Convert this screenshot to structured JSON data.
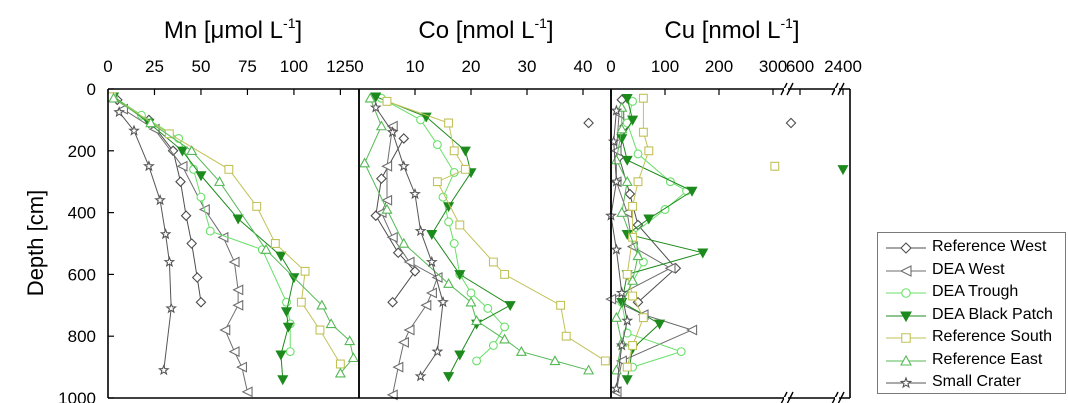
{
  "chart_data": {
    "type": "scatter",
    "ylabel": "Depth [cm]",
    "ylim": [
      1000,
      0
    ],
    "yticks": [
      "0",
      "200",
      "400",
      "600",
      "800",
      "1000"
    ],
    "legend_position": "right",
    "series": [
      {
        "name": "Reference West",
        "color": "#4d4d4d",
        "marker": "diamond"
      },
      {
        "name": "DEA West",
        "color": "#6e6e6e",
        "marker": "triangle-left"
      },
      {
        "name": "DEA Trough",
        "color": "#69e069",
        "marker": "circle"
      },
      {
        "name": "DEA Black Patch",
        "color": "#1c8a1c",
        "marker": "triangle-down-filled"
      },
      {
        "name": "Reference South",
        "color": "#c2c25a",
        "marker": "square"
      },
      {
        "name": "Reference East",
        "color": "#56b856",
        "marker": "triangle-up"
      },
      {
        "name": "Small Crater",
        "color": "#555555",
        "marker": "star"
      }
    ],
    "panels": [
      {
        "title": "Mn [μmol L",
        "title_sup": "-1",
        "title_end": "]",
        "xlim": [
          0,
          135
        ],
        "xticks": [
          "0",
          "25",
          "50",
          "75",
          "100",
          "125"
        ],
        "data": {
          "Reference West": [
            [
              5,
              35
            ],
            [
              22,
              100
            ],
            [
              35,
              200
            ],
            [
              39,
              300
            ],
            [
              42,
              410
            ],
            [
              45,
              500
            ],
            [
              48,
              610
            ],
            [
              50,
              690
            ]
          ],
          "DEA West": [
            [
              8,
              65
            ],
            [
              25,
              130
            ],
            [
              40,
              250
            ],
            [
              52,
              390
            ],
            [
              62,
              480
            ],
            [
              68,
              560
            ],
            [
              70,
              650
            ],
            [
              70,
              700
            ],
            [
              63,
              780
            ],
            [
              68,
              850
            ],
            [
              72,
              900
            ],
            [
              75,
              980
            ]
          ],
          "DEA Trough": [
            [
              3,
              25
            ],
            [
              18,
              85
            ],
            [
              38,
              160
            ],
            [
              46,
              260
            ],
            [
              50,
              350
            ],
            [
              55,
              460
            ],
            [
              83,
              520
            ],
            [
              96,
              690
            ],
            [
              98,
              760
            ],
            [
              98,
              850
            ]
          ],
          "DEA Black Patch": [
            [
              3,
              25
            ],
            [
              22,
              110
            ],
            [
              40,
              200
            ],
            [
              50,
              280
            ],
            [
              70,
              420
            ],
            [
              93,
              540
            ],
            [
              100,
              610
            ],
            [
              96,
              720
            ],
            [
              97,
              770
            ],
            [
              93,
              860
            ],
            [
              94,
              940
            ]
          ],
          "Reference South": [
            [
              2,
              25
            ],
            [
              33,
              145
            ],
            [
              65,
              260
            ],
            [
              80,
              380
            ],
            [
              90,
              500
            ],
            [
              106,
              590
            ],
            [
              104,
              690
            ],
            [
              114,
              780
            ],
            [
              125,
              890
            ]
          ],
          "Reference East": [
            [
              3,
              30
            ],
            [
              23,
              110
            ],
            [
              45,
              200
            ],
            [
              60,
              300
            ],
            [
              85,
              520
            ],
            [
              115,
              700
            ],
            [
              120,
              760
            ],
            [
              130,
              815
            ],
            [
              132,
              870
            ],
            [
              125,
              920
            ]
          ],
          "Small Crater": [
            [
              6,
              75
            ],
            [
              14,
              135
            ],
            [
              22,
              250
            ],
            [
              28,
              360
            ],
            [
              31,
              470
            ],
            [
              33,
              560
            ],
            [
              34,
              710
            ],
            [
              30,
              910
            ]
          ]
        }
      },
      {
        "title": "Co [nmol L",
        "title_sup": "-1",
        "title_end": "]",
        "xlim": [
          0,
          45
        ],
        "xticks": [
          "0",
          "10",
          "20",
          "30",
          "40"
        ],
        "data": {
          "Reference West": [
            [
              8,
              160
            ],
            [
              4,
              290
            ],
            [
              3,
              410
            ],
            [
              7,
              530
            ],
            [
              10,
              590
            ],
            [
              6,
              690
            ],
            [
              41,
              110
            ]
          ],
          "DEA West": [
            [
              6,
              120
            ],
            [
              5,
              250
            ],
            [
              5,
              360
            ],
            [
              4,
              400
            ],
            [
              6,
              480
            ],
            [
              9,
              560
            ],
            [
              14,
              610
            ],
            [
              13,
              660
            ],
            [
              12,
              700
            ],
            [
              9,
              780
            ],
            [
              8,
              820
            ],
            [
              7,
              900
            ],
            [
              6,
              990
            ]
          ],
          "DEA Trough": [
            [
              4,
              30
            ],
            [
              11,
              100
            ],
            [
              14,
              180
            ],
            [
              17,
              270
            ],
            [
              15,
              350
            ],
            [
              16,
              430
            ],
            [
              17,
              500
            ],
            [
              18,
              600
            ],
            [
              20,
              660
            ],
            [
              23,
              710
            ],
            [
              26,
              770
            ],
            [
              24,
              830
            ],
            [
              21,
              880
            ]
          ],
          "DEA Black Patch": [
            [
              3,
              25
            ],
            [
              12,
              90
            ],
            [
              19,
              200
            ],
            [
              20,
              270
            ],
            [
              16,
              380
            ],
            [
              13,
              470
            ],
            [
              18,
              600
            ],
            [
              27,
              700
            ],
            [
              21,
              760
            ],
            [
              18,
              860
            ],
            [
              16,
              930
            ]
          ],
          "Reference South": [
            [
              5,
              40
            ],
            [
              16,
              110
            ],
            [
              17,
              200
            ],
            [
              19,
              260
            ],
            [
              14,
              300
            ],
            [
              18,
              440
            ],
            [
              24,
              560
            ],
            [
              26,
              600
            ],
            [
              36,
              700
            ],
            [
              37,
              800
            ],
            [
              44,
              880
            ]
          ],
          "Reference East": [
            [
              2,
              30
            ],
            [
              4,
              120
            ],
            [
              1,
              240
            ],
            [
              5,
              390
            ],
            [
              8,
              500
            ],
            [
              16,
              630
            ],
            [
              20,
              690
            ],
            [
              21,
              750
            ],
            [
              26,
              810
            ],
            [
              29,
              850
            ],
            [
              35,
              880
            ],
            [
              41,
              910
            ]
          ],
          "Small Crater": [
            [
              3,
              60
            ],
            [
              6,
              140
            ],
            [
              8,
              250
            ],
            [
              10,
              340
            ],
            [
              11,
              460
            ],
            [
              13,
              560
            ],
            [
              15,
              690
            ],
            [
              14,
              850
            ],
            [
              11,
              930
            ]
          ]
        }
      },
      {
        "title": "Cu [nmol L",
        "title_sup": "-1",
        "title_end": "]",
        "xlim": [
          0,
          2400
        ],
        "xticks": [
          "0",
          "100",
          "200",
          "300",
          "600",
          "2400"
        ],
        "axis_break": true,
        "data": {
          "Reference West": [
            [
              20,
              35
            ],
            [
              25,
              120
            ],
            [
              15,
              220
            ],
            [
              35,
              340
            ],
            [
              50,
              440
            ],
            [
              120,
              580
            ],
            [
              50,
              690
            ],
            [
              500,
              110
            ]
          ],
          "DEA West": [
            [
              15,
              80
            ],
            [
              10,
              200
            ],
            [
              10,
              300
            ],
            [
              30,
              400
            ],
            [
              40,
              510
            ],
            [
              110,
              580
            ],
            [
              0,
              680
            ],
            [
              60,
              730
            ],
            [
              150,
              780
            ],
            [
              20,
              880
            ],
            [
              10,
              980
            ]
          ],
          "DEA Trough": [
            [
              40,
              40
            ],
            [
              30,
              110
            ],
            [
              50,
              210
            ],
            [
              110,
              300
            ],
            [
              140,
              330
            ],
            [
              100,
              390
            ],
            [
              40,
              470
            ],
            [
              60,
              560
            ],
            [
              20,
              690
            ],
            [
              30,
              790
            ],
            [
              130,
              850
            ],
            [
              40,
              900
            ]
          ],
          "DEA Black Patch": [
            [
              30,
              30
            ],
            [
              40,
              100
            ],
            [
              20,
              160
            ],
            [
              30,
              230
            ],
            [
              150,
              330
            ],
            [
              70,
              420
            ],
            [
              30,
              470
            ],
            [
              170,
              530
            ],
            [
              30,
              600
            ],
            [
              20,
              690
            ],
            [
              90,
              760
            ],
            [
              40,
              840
            ],
            [
              30,
              940
            ],
            [
              2400,
              260
            ]
          ],
          "Reference South": [
            [
              60,
              30
            ],
            [
              60,
              140
            ],
            [
              70,
              200
            ],
            [
              50,
              300
            ],
            [
              40,
              380
            ],
            [
              40,
              480
            ],
            [
              30,
              600
            ],
            [
              40,
              670
            ],
            [
              60,
              740
            ],
            [
              40,
              830
            ],
            [
              30,
              900
            ],
            [
              320,
              250
            ]
          ],
          "Reference East": [
            [
              20,
              60
            ],
            [
              20,
              130
            ],
            [
              10,
              230
            ],
            [
              30,
              300
            ],
            [
              20,
              400
            ],
            [
              50,
              540
            ],
            [
              40,
              620
            ],
            [
              10,
              740
            ],
            [
              20,
              820
            ],
            [
              10,
              910
            ]
          ],
          "Small Crater": [
            [
              10,
              70
            ],
            [
              5,
              170
            ],
            [
              10,
              300
            ],
            [
              0,
              410
            ],
            [
              10,
              520
            ],
            [
              20,
              660
            ],
            [
              30,
              750
            ],
            [
              20,
              830
            ],
            [
              10,
              970
            ]
          ]
        }
      }
    ]
  }
}
